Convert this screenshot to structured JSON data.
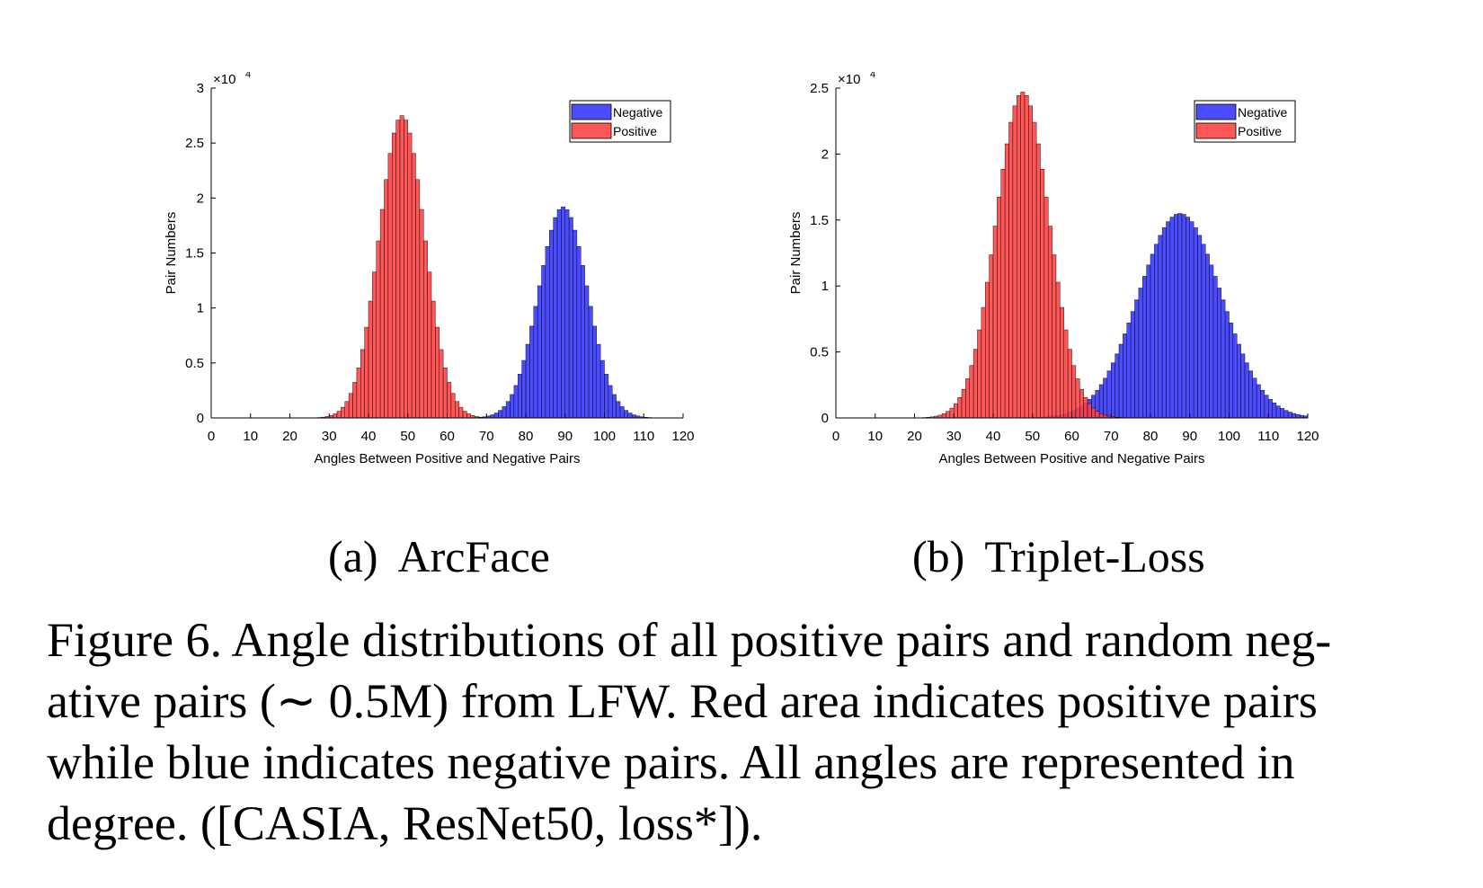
{
  "chart_data": [
    {
      "type": "bar",
      "subcaption_label": "(a)",
      "subcaption_text": "ArcFace",
      "xlabel": "Angles Between Positive and Negative Pairs",
      "ylabel": "Pair Numbers",
      "exponent_label": "×10",
      "exponent_power": "4",
      "xlim": [
        0,
        120
      ],
      "ylim": [
        0,
        3
      ],
      "x_ticks": [
        "0",
        "10",
        "20",
        "30",
        "40",
        "50",
        "60",
        "70",
        "80",
        "90",
        "100",
        "110",
        "120"
      ],
      "y_ticks": [
        "0",
        "0.5",
        "1",
        "1.5",
        "2",
        "2.5",
        "3"
      ],
      "legend_position": "top-right",
      "grid": false,
      "series": [
        {
          "name": "Negative",
          "color": "#3333ff",
          "mean": 89.5,
          "std": 6.2,
          "peak": 1.92
        },
        {
          "name": "Positive",
          "color": "#ff4040",
          "mean": 48.5,
          "std": 5.8,
          "peak": 2.75
        }
      ]
    },
    {
      "type": "bar",
      "subcaption_label": "(b)",
      "subcaption_text": "Triplet-Loss",
      "xlabel": "Angles Between Positive and Negative Pairs",
      "ylabel": "Pair Numbers",
      "exponent_label": "×10",
      "exponent_power": "4",
      "xlim": [
        0,
        120
      ],
      "ylim": [
        0,
        2.5
      ],
      "x_ticks": [
        "0",
        "10",
        "20",
        "30",
        "40",
        "50",
        "60",
        "70",
        "80",
        "90",
        "100",
        "110",
        "120"
      ],
      "y_ticks": [
        "0",
        "0.5",
        "1",
        "1.5",
        "2",
        "2.5"
      ],
      "legend_position": "top-right",
      "grid": false,
      "series": [
        {
          "name": "Negative",
          "color": "#3333ff",
          "mean": 87.5,
          "std": 10.5,
          "peak": 1.55
        },
        {
          "name": "Positive",
          "color": "#ff4040",
          "mean": 47.5,
          "std": 6.8,
          "peak": 2.47
        }
      ]
    }
  ],
  "caption": {
    "lines": [
      "Figure 6. Angle distributions of all positive pairs and random neg-",
      "ative pairs (∼ 0.5M) from LFW. Red area indicates positive pairs",
      "while blue indicates negative pairs.  All angles are represented in",
      "degree. ([CASIA, ResNet50, loss*])."
    ]
  }
}
